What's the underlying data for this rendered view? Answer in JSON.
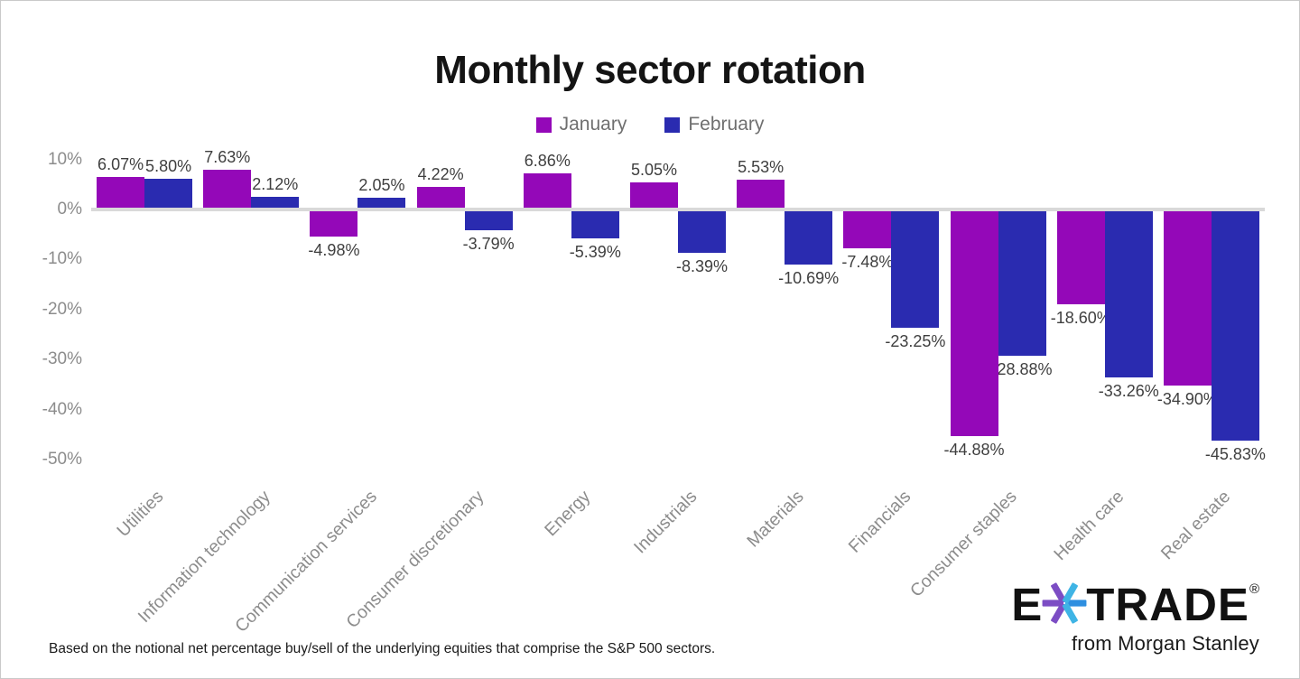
{
  "title": "Monthly sector rotation",
  "legend": {
    "january": "January",
    "february": "February"
  },
  "colors": {
    "january": "#9408B8",
    "february": "#2A2BB0",
    "axis_text": "#8C8C8C",
    "value_text": "#3F3F3F",
    "zero_line": "#D9D9D9",
    "title_text": "#141414",
    "legend_text": "#6F6F6F"
  },
  "chart_data": {
    "type": "bar",
    "title": "Monthly sector rotation",
    "categories": [
      "Utilities",
      "Information technology",
      "Communication services",
      "Consumer discretionary",
      "Energy",
      "Industrials",
      "Materials",
      "Financials",
      "Consumer staples",
      "Health care",
      "Real estate"
    ],
    "series": [
      {
        "name": "January",
        "color_key": "january",
        "values": [
          6.07,
          7.63,
          -4.98,
          4.22,
          6.86,
          5.05,
          5.53,
          -7.48,
          -44.88,
          -18.6,
          -34.9
        ],
        "labels": [
          "6.07%",
          "7.63%",
          "-4.98%",
          "4.22%",
          "6.86%",
          "5.05%",
          "5.53%",
          "-7.48%",
          "-44.88%",
          "-18.60%",
          "-34.90%"
        ]
      },
      {
        "name": "February",
        "color_key": "february",
        "values": [
          5.8,
          2.12,
          2.05,
          -3.79,
          -5.39,
          -8.39,
          -10.69,
          -23.25,
          -28.88,
          -33.26,
          -45.83
        ],
        "labels": [
          "5.80%",
          "2.12%",
          "2.05%",
          "-3.79%",
          "-5.39%",
          "-8.39%",
          "-10.69%",
          "-23.25%",
          "-28.88%",
          "-33.26%",
          "-45.83%"
        ]
      }
    ],
    "y_ticks": [
      {
        "label": "10%",
        "value": 10
      },
      {
        "label": "0%",
        "value": 0
      },
      {
        "label": "-10%",
        "value": -10
      },
      {
        "label": "-20%",
        "value": -20
      },
      {
        "label": "-30%",
        "value": -30
      },
      {
        "label": "-40%",
        "value": -40
      },
      {
        "label": "-50%",
        "value": -50
      }
    ],
    "ylim": [
      -50,
      10
    ],
    "grid": false,
    "legend_position": "top",
    "xlabel": "",
    "ylabel": ""
  },
  "footnote": "Based on the notional net percentage buy/sell of the underlying equities that comprise the S&P 500 sectors.",
  "logo": {
    "brand_e": "E",
    "brand_rest": "TRADE",
    "registered": "®",
    "tagline": "from Morgan Stanley",
    "star_purple": "#7C4DC4",
    "star_cyan": "#3FB4E5",
    "star_blue": "#2E8FE0"
  }
}
